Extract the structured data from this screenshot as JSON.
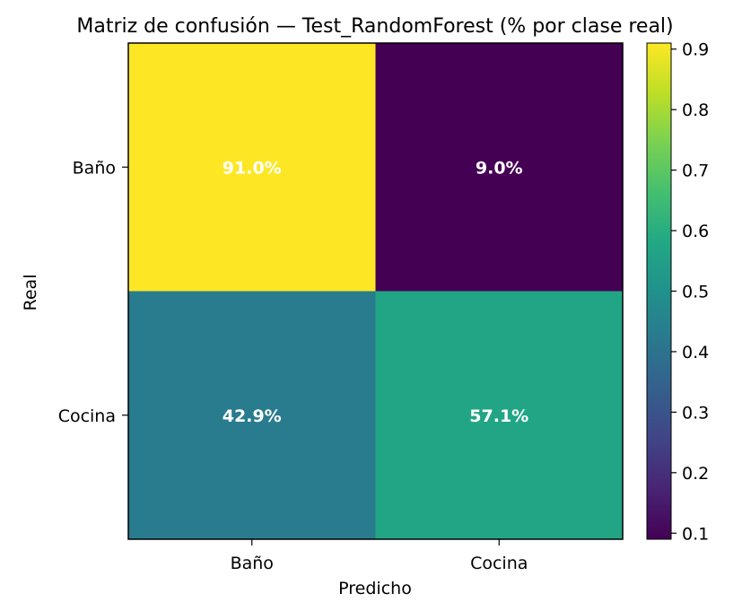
{
  "chart_data": {
    "type": "heatmap",
    "title": "Matriz de confusión — Test_RandomForest (% por clase real)",
    "xlabel": "Predicho",
    "ylabel": "Real",
    "x_categories": [
      "Baño",
      "Cocina"
    ],
    "y_categories": [
      "Baño",
      "Cocina"
    ],
    "values": [
      [
        0.91,
        0.09
      ],
      [
        0.429,
        0.571
      ]
    ],
    "cell_labels": [
      [
        "91.0%",
        "9.0%"
      ],
      [
        "42.9%",
        "57.1%"
      ]
    ],
    "colormap": "viridis",
    "colorbar": {
      "range": [
        0.09,
        0.91
      ],
      "ticks": [
        0.1,
        0.2,
        0.3,
        0.4,
        0.5,
        0.6,
        0.7,
        0.8,
        0.9
      ],
      "tick_labels": [
        "0.1",
        "0.2",
        "0.3",
        "0.4",
        "0.5",
        "0.6",
        "0.7",
        "0.8",
        "0.9"
      ]
    },
    "cell_label_color": "#ffffff"
  }
}
